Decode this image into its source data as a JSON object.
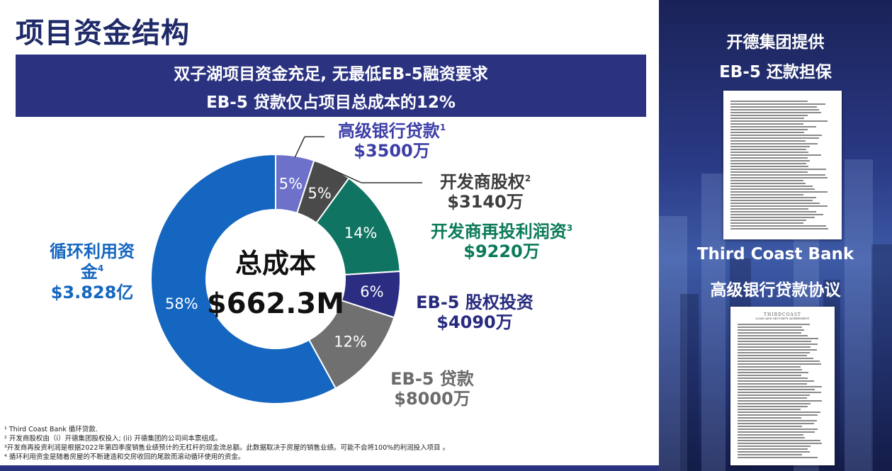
{
  "slide": {
    "title": "项目资金结构",
    "banner": {
      "line1": "双子湖项目资金充足, 无最低EB-5融资要求",
      "line2": "EB-5 贷款仅占项目总成本的12%"
    }
  },
  "center": {
    "label": "总成本",
    "value": "$662.3M"
  },
  "chart_data": {
    "type": "pie",
    "title": "总成本 $662.3M",
    "segments": [
      {
        "name": "高级银行贷款",
        "footnote": "1",
        "amount": "$3500万",
        "percent": 5,
        "percent_label": "5%",
        "color": "#6e71c9",
        "label_color": "#3d3fa8",
        "percent_color": "#ffffff"
      },
      {
        "name": "开发商股权",
        "footnote": "2",
        "amount": "$3140万",
        "percent": 5,
        "percent_label": "5%",
        "color": "#4a4a4a",
        "label_color": "#3d3d3d",
        "percent_color": "#ffffff"
      },
      {
        "name": "开发商再投利润资",
        "footnote": "3",
        "amount": "$9220万",
        "percent": 14,
        "percent_label": "14%",
        "color": "#0f7462",
        "label_color": "#0b7a5a",
        "percent_color": "#ffffff"
      },
      {
        "name": "EB-5 股权投资",
        "footnote": "",
        "amount": "$4090万",
        "percent": 6,
        "percent_label": "6%",
        "color": "#2b2d82",
        "label_color": "#272a7e",
        "percent_color": "#ffffff"
      },
      {
        "name": "EB-5 贷款",
        "footnote": "",
        "amount": "$8000万",
        "percent": 12,
        "percent_label": "12%",
        "color": "#707070",
        "label_color": "#6b6b6b",
        "percent_color": "#ffffff"
      },
      {
        "name": "循环利用资金",
        "footnote": "4",
        "amount": "$3.828亿",
        "percent": 58,
        "percent_label": "58%",
        "color": "#1466c0",
        "label_color": "#1466c0",
        "percent_color": "#ffffff"
      }
    ]
  },
  "footnotes": [
    "¹ Third Coast Bank 循环贷款.",
    "² 开发商股权由（i）开德集团股权投入; (ii) 开德集团的公司间本票组成。",
    "³开发商再投资利润是根据2022年第四季度销售业绩预计的无杠杆的现金流总额。此数据取决于房屋的销售业绩。可能不会将100%的利润投入项目 。",
    "⁴ 循环利用资金是随着房屋的不断建造和交房收回的尾款而滚动循环使用的资金。"
  ],
  "right_panel": {
    "heading1_line1": "开德集团提供",
    "heading1_line2": "EB-5 还款担保",
    "heading2_line1": "Third Coast Bank",
    "heading2_line2": "高级银行贷款协议",
    "doc2_logo": "THIRDCOAST",
    "doc2_heading": "LOAN AND SECURITY AGREEMENT"
  },
  "colors": {
    "title": "#1f2a68",
    "banner_bg": "#2b3381",
    "panel_bg": "#1a2258"
  }
}
